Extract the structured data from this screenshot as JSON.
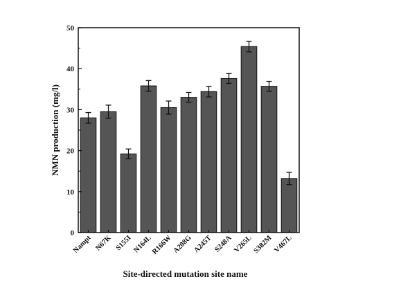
{
  "chart_data": {
    "type": "bar",
    "title": "",
    "xlabel": "Site-directed mutation site name",
    "ylabel": "NMN production (mg/l)",
    "ylim": [
      0,
      50
    ],
    "yticks": [
      "0",
      "10",
      "20",
      "30",
      "40",
      "50"
    ],
    "categories": [
      "Nampt",
      "N67K",
      "S155I",
      "N164L",
      "R166W",
      "A208G",
      "A245T",
      "S248A",
      "V265L",
      "S382M",
      "V467L"
    ],
    "values": [
      28.0,
      29.5,
      19.2,
      35.8,
      30.5,
      33.0,
      34.4,
      37.6,
      45.4,
      35.7,
      13.2
    ],
    "errors": [
      1.3,
      1.6,
      1.2,
      1.3,
      1.6,
      1.2,
      1.3,
      1.2,
      1.3,
      1.2,
      1.5
    ],
    "bar_color": "#555555",
    "error_bars": true,
    "grid": false,
    "legend": "none"
  }
}
